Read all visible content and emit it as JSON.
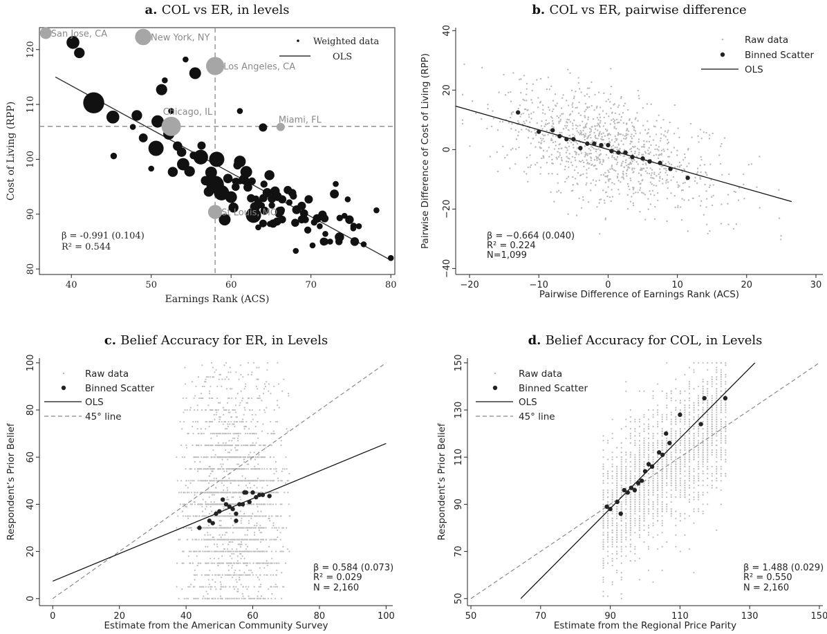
{
  "chart_data": [
    {
      "type": "scatter",
      "panel_letter": "a.",
      "title": "COL vs ER, in levels",
      "xlabel": "Earnings Rank (ACS)",
      "ylabel": "Cost of Living (RPP)",
      "xlim": [
        36,
        80.5
      ],
      "ylim": [
        79,
        124
      ],
      "xticks": [
        40,
        50,
        60,
        70,
        80
      ],
      "yticks": [
        80,
        90,
        100,
        110,
        120
      ],
      "grid": false,
      "legend_position": "top-right",
      "legend": [
        "Weighted data",
        "OLS"
      ],
      "annotation": [
        "β = -0.991 (0.104)",
        "R² = 0.544"
      ],
      "reference_lines": {
        "x": 58,
        "y": 106
      },
      "ols": {
        "x": [
          38,
          80
        ],
        "y": [
          115,
          81.6
        ]
      },
      "highlighted_cities": [
        {
          "name": "San Jose, CA",
          "x": 36.8,
          "y": 123,
          "size": 1.5
        },
        {
          "name": "New York, NY",
          "x": 49,
          "y": 122.3,
          "size": 2.3
        },
        {
          "name": "Los Angeles, CA",
          "x": 58,
          "y": 117,
          "size": 2.6
        },
        {
          "name": "Chicago, IL",
          "x": 52.5,
          "y": 106,
          "size": 2.8
        },
        {
          "name": "Miami, FL",
          "x": 66.2,
          "y": 105.9,
          "size": 0.9
        },
        {
          "name": "St Louis, MO",
          "x": 58,
          "y": 90.4,
          "size": 1.9
        }
      ],
      "weighted_points": [
        [
          40.2,
          121.3,
          1.7
        ],
        [
          41,
          119.4,
          1.3
        ],
        [
          42.8,
          110.3,
          3.1
        ],
        [
          45.2,
          107.7,
          1.7
        ],
        [
          45.3,
          100.6,
          0.6
        ],
        [
          48.2,
          108,
          1.3
        ],
        [
          49,
          103.9,
          1
        ],
        [
          50.8,
          106.9,
          1.6
        ],
        [
          50.6,
          102,
          2.1
        ],
        [
          51.3,
          112.7,
          1.4
        ],
        [
          52.2,
          104.6,
          1.4
        ],
        [
          52.5,
          108.8,
          0.5
        ],
        [
          52.7,
          97.7,
          1.2
        ],
        [
          53.3,
          102.4,
          1.1
        ],
        [
          53.8,
          101.3,
          1.1
        ],
        [
          54,
          99.1,
          1.6
        ],
        [
          54.8,
          97.8,
          1.3
        ],
        [
          55.3,
          100.7,
          0.8
        ],
        [
          55.5,
          115.7,
          1.5
        ],
        [
          56.2,
          100.4,
          2
        ],
        [
          56.3,
          102.5,
          0.9
        ],
        [
          56.8,
          96.1,
          1.1
        ],
        [
          57.2,
          94.1,
          1.2
        ],
        [
          57.5,
          97.6,
          1.5
        ],
        [
          58,
          95.4,
          2.5
        ],
        [
          58.2,
          100,
          2.1
        ],
        [
          58.8,
          93.9,
          2.1
        ],
        [
          59.2,
          89,
          1.5
        ],
        [
          59.6,
          96.5,
          1.1
        ],
        [
          60,
          93.1,
          1.5
        ],
        [
          60.3,
          91.2,
          1.2
        ],
        [
          60.8,
          98.9,
          0.9
        ],
        [
          61.1,
          99.6,
          1.5
        ],
        [
          61.6,
          96.4,
          1.1
        ],
        [
          61.9,
          97.7,
          1.5
        ],
        [
          62.1,
          94.9,
          1
        ],
        [
          62.5,
          92.9,
          0.9
        ],
        [
          62.8,
          89.8,
          2.1
        ],
        [
          63,
          91.3,
          1.2
        ],
        [
          63.4,
          92.1,
          0.8
        ],
        [
          64,
          88.3,
          0.8
        ],
        [
          64,
          105.8,
          0.9
        ],
        [
          64.8,
          97.1,
          1.2
        ],
        [
          65.5,
          94.2,
          1.1
        ],
        [
          65.8,
          93.2,
          1
        ],
        [
          66.1,
          90.5,
          1.1
        ],
        [
          66.4,
          92.7,
          0.9
        ],
        [
          67.1,
          94.4,
          0.9
        ],
        [
          67.8,
          93.3,
          0.7
        ],
        [
          68.2,
          90.8,
          1
        ],
        [
          68.8,
          89.1,
          0.7
        ],
        [
          69.6,
          87.1,
          0.7
        ],
        [
          70.4,
          88.5,
          0.6
        ],
        [
          70.2,
          84.3,
          0.5
        ],
        [
          71.1,
          87.8,
          0.5
        ],
        [
          71.8,
          86.4,
          0.5
        ],
        [
          72.4,
          85,
          0.5
        ],
        [
          73.1,
          95.5,
          0.5
        ],
        [
          73.6,
          89.3,
          0.6
        ],
        [
          74.2,
          89.7,
          0.5
        ],
        [
          74.6,
          92.7,
          0.5
        ],
        [
          75.3,
          87.4,
          0.5
        ],
        [
          76,
          87.8,
          0.5
        ],
        [
          76.6,
          84.5,
          0.5
        ],
        [
          78.2,
          90.7,
          0.5
        ],
        [
          80,
          82,
          0.5
        ],
        [
          68.1,
          83.3,
          0.5
        ],
        [
          65.1,
          91.6,
          0.6
        ],
        [
          63.4,
          87.6,
          0.5
        ],
        [
          61.1,
          108.8,
          0.5
        ],
        [
          54.3,
          118.2,
          0.5
        ],
        [
          51.7,
          114.4,
          0.5
        ],
        [
          47.7,
          105.9,
          0.5
        ],
        [
          50,
          98.3,
          0.5
        ]
      ],
      "auto_points": {
        "n": 42,
        "seed": 11,
        "x": [
          60,
          76
        ],
        "y": [
          85,
          96
        ],
        "size": [
          0.5,
          1.1
        ],
        "follows_ols": true
      }
    },
    {
      "type": "scatter",
      "panel_letter": "b.",
      "title": "COL vs ER, pairwise difference",
      "xlabel": "Pairwise Difference of Earnings Rank (ACS)",
      "ylabel": "Pairwise Difference of Cost of Living (RPP)",
      "xlim": [
        -22,
        31
      ],
      "ylim": [
        -42,
        41
      ],
      "xticks": [
        -20,
        -10,
        0,
        10,
        20,
        30
      ],
      "yticks": [
        -40,
        -20,
        0,
        20,
        40
      ],
      "grid": false,
      "legend_position": "top-right",
      "legend": [
        "Raw data",
        "Binned Scatter",
        "OLS"
      ],
      "annotation": [
        "β = −0.664 (0.040)",
        "R² = 0.224",
        "N=1,099"
      ],
      "ols": {
        "x": [
          -22,
          26.5
        ],
        "y": [
          14.6,
          -17.5
        ]
      },
      "binned": [
        [
          -13,
          12.5
        ],
        [
          -10,
          6
        ],
        [
          -8,
          6.5
        ],
        [
          -7,
          4.5
        ],
        [
          -6,
          3.5
        ],
        [
          -5,
          3.5
        ],
        [
          -4,
          0.5
        ],
        [
          -3,
          2
        ],
        [
          -2,
          2
        ],
        [
          -1,
          1.5
        ],
        [
          0,
          1.5
        ],
        [
          0.5,
          -0.5
        ],
        [
          1.5,
          -1
        ],
        [
          2.5,
          -1
        ],
        [
          3.5,
          -2.5
        ],
        [
          5,
          -3
        ],
        [
          6,
          -4
        ],
        [
          7.5,
          -4.5
        ],
        [
          9,
          -6.5
        ],
        [
          11.5,
          -9.5
        ]
      ],
      "raw": {
        "n": 1099,
        "seed": 7,
        "center_x": 0,
        "spread_x": 8,
        "slope": -0.664,
        "noise_y": 9,
        "xclip": [
          -21,
          27
        ],
        "yclip": [
          -38,
          33
        ]
      }
    },
    {
      "type": "scatter",
      "panel_letter": "c.",
      "title": "Belief Accuracy for ER, in Levels",
      "xlabel": "Estimate from the American Community Survey",
      "ylabel": "Respondent’s Prior Belief",
      "xlim": [
        -4,
        102
      ],
      "ylim": [
        -3,
        102
      ],
      "xticks": [
        0,
        20,
        40,
        60,
        80,
        100
      ],
      "yticks": [
        0,
        20,
        40,
        60,
        80,
        100
      ],
      "grid": false,
      "legend_position": "top-left",
      "legend": [
        "Raw data",
        "Binned Scatter",
        "OLS",
        "45° line"
      ],
      "annotation": [
        "β = 0.584 (0.073)",
        "R² = 0.029",
        "N = 2,160"
      ],
      "ols": {
        "x": [
          0,
          100
        ],
        "y": [
          7.4,
          65.8
        ]
      },
      "diag": {
        "x": [
          0,
          100
        ],
        "y": [
          0,
          100
        ]
      },
      "binned": [
        [
          44,
          30
        ],
        [
          47,
          33
        ],
        [
          48,
          32
        ],
        [
          49,
          36
        ],
        [
          50,
          37
        ],
        [
          51,
          42
        ],
        [
          52,
          40
        ],
        [
          53,
          39
        ],
        [
          54,
          38
        ],
        [
          55,
          36
        ],
        [
          56,
          40
        ],
        [
          57,
          40
        ],
        [
          57.5,
          45
        ],
        [
          58,
          45
        ],
        [
          59,
          41
        ],
        [
          60,
          45
        ],
        [
          61,
          43
        ],
        [
          62,
          44
        ],
        [
          63,
          44
        ],
        [
          65,
          43.5
        ],
        [
          55,
          33
        ]
      ],
      "raw": {
        "n": 2160,
        "seed": 5,
        "xmin": 36,
        "xmax": 72,
        "step_y": 1,
        "ymin": 0,
        "ymax": 100
      }
    },
    {
      "type": "scatter",
      "panel_letter": "d.",
      "title": "Belief Accuracy for COL, in Levels",
      "xlabel": "Estimate from the Regional Price Parity",
      "ylabel": "Respondent’s Prior Belief",
      "xlim": [
        49,
        151
      ],
      "ylim": [
        47,
        152
      ],
      "xticks": [
        50,
        70,
        90,
        110,
        130,
        150
      ],
      "yticks": [
        50,
        70,
        90,
        110,
        130,
        150
      ],
      "grid": false,
      "legend_position": "top-left",
      "legend": [
        "Raw data",
        "Binned Scatter",
        "OLS",
        "45° line"
      ],
      "annotation": [
        "β = 1.488 (0.029)",
        "R² = 0.550",
        "N = 2,160"
      ],
      "ols": {
        "x": [
          64.3,
          131.5
        ],
        "y": [
          50,
          150
        ]
      },
      "diag": {
        "x": [
          50,
          150
        ],
        "y": [
          50,
          150
        ]
      },
      "binned": [
        [
          89,
          89
        ],
        [
          90,
          88
        ],
        [
          92,
          91
        ],
        [
          93,
          86
        ],
        [
          94,
          96
        ],
        [
          95,
          95
        ],
        [
          96,
          97
        ],
        [
          97,
          96
        ],
        [
          98,
          99
        ],
        [
          99,
          100
        ],
        [
          100,
          104
        ],
        [
          101,
          107
        ],
        [
          102,
          106
        ],
        [
          104,
          112
        ],
        [
          105,
          111
        ],
        [
          106,
          120
        ],
        [
          107,
          116
        ],
        [
          110,
          128
        ],
        [
          116,
          124
        ],
        [
          117,
          135
        ],
        [
          123,
          135
        ]
      ],
      "raw": {
        "n": 2160,
        "seed": 9,
        "xmin": 87.5,
        "xmax": 124,
        "ymin": 50,
        "ymax": 150
      }
    }
  ]
}
